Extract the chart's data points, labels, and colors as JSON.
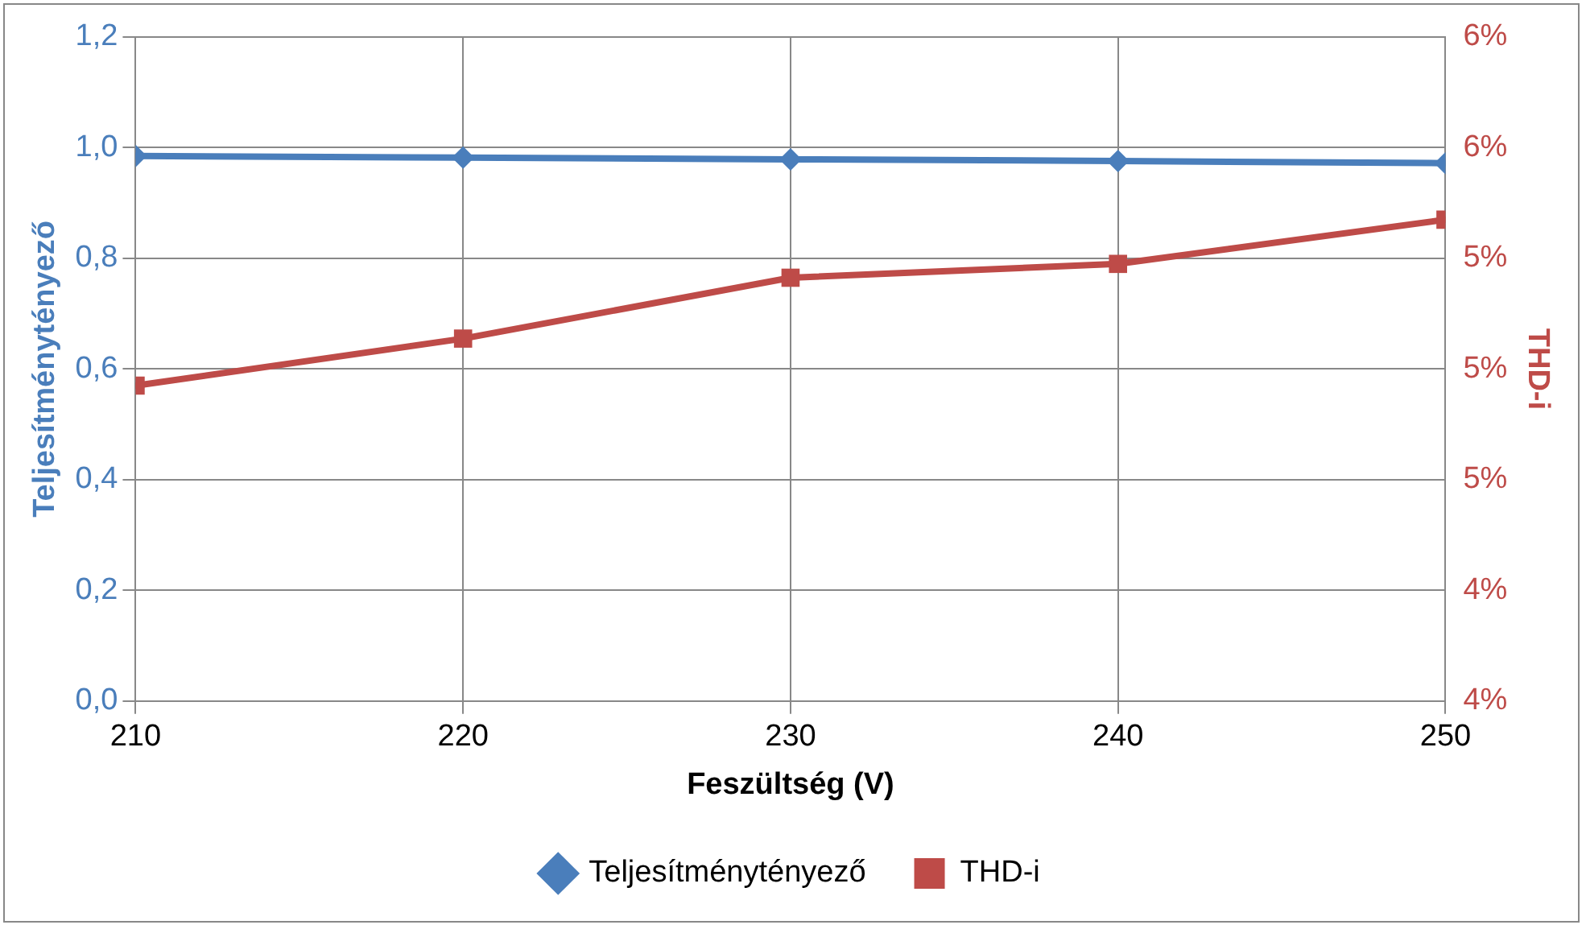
{
  "chart_data": {
    "type": "line",
    "xlabel": "Feszültség (V)",
    "ylabel": "Teljesítménytényező",
    "y2label": "THD-i",
    "x": [
      210,
      220,
      230,
      240,
      250
    ],
    "xlim": [
      210,
      250
    ],
    "xticks": [
      210,
      220,
      230,
      240,
      250
    ],
    "ylim": [
      0,
      1.2
    ],
    "yticks": [
      {
        "value": 0,
        "label": "0,0"
      },
      {
        "value": 0.2,
        "label": "0,2"
      },
      {
        "value": 0.4,
        "label": "0,4"
      },
      {
        "value": 0.6,
        "label": "0,6"
      },
      {
        "value": 0.8,
        "label": "0,8"
      },
      {
        "value": 1,
        "label": "1,0"
      },
      {
        "value": 1.2,
        "label": "1,2"
      }
    ],
    "y2lim": [
      3.8,
      6.2
    ],
    "y2ticks": [
      {
        "value": 3.8,
        "label": "4%"
      },
      {
        "value": 4.2,
        "label": "4%"
      },
      {
        "value": 4.6,
        "label": "5%"
      },
      {
        "value": 5.0,
        "label": "5%"
      },
      {
        "value": 5.4,
        "label": "5%"
      },
      {
        "value": 5.8,
        "label": "6%"
      },
      {
        "value": 6.2,
        "label": "6%"
      }
    ],
    "series": [
      {
        "name": "Teljesítménytényező",
        "color": "#4a7ebb",
        "marker": "diamond",
        "values": [
          0.985,
          0.982,
          0.979,
          0.976,
          0.972
        ]
      },
      {
        "name": "THD-i",
        "color": "#be4b48",
        "marker": "square",
        "axis": "y2",
        "values": [
          4.94,
          5.11,
          5.33,
          5.38,
          5.54
        ]
      }
    ],
    "grid": true,
    "legend": "bottom",
    "line_style": "solid"
  }
}
